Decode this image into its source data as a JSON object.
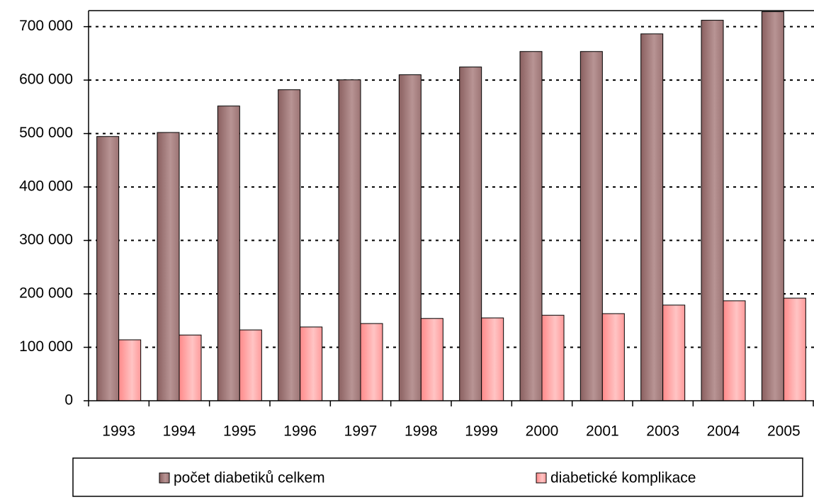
{
  "chart_data": {
    "type": "bar",
    "categories": [
      "1993",
      "1994",
      "1995",
      "1996",
      "1997",
      "1998",
      "1999",
      "2000",
      "2001",
      "2003",
      "2004",
      "2005"
    ],
    "series": [
      {
        "name": "počet diabetiků celkem",
        "color": "#a07a7a",
        "values": [
          494500,
          502000,
          551500,
          582000,
          600500,
          610000,
          624500,
          653500,
          653500,
          686500,
          712000,
          728000
        ]
      },
      {
        "name": "diabetické komplikace",
        "color": "#ff9a9a",
        "values": [
          114000,
          123000,
          132500,
          138000,
          144500,
          154000,
          155000,
          160000,
          163000,
          179000,
          187000,
          192000
        ]
      }
    ],
    "ylim": [
      0,
      730000
    ],
    "yticks": [
      0,
      {
        "value": 100000,
        "label": "100 000"
      },
      {
        "value": 200000,
        "label": "200 000"
      },
      {
        "value": 300000,
        "label": "300 000"
      },
      {
        "value": 400000,
        "label": "400 000"
      },
      {
        "value": 500000,
        "label": "500 000"
      },
      {
        "value": 600000,
        "label": "600 000"
      },
      {
        "value": 700000,
        "label": "700 000"
      }
    ],
    "grid": true,
    "legend": "bottom"
  }
}
